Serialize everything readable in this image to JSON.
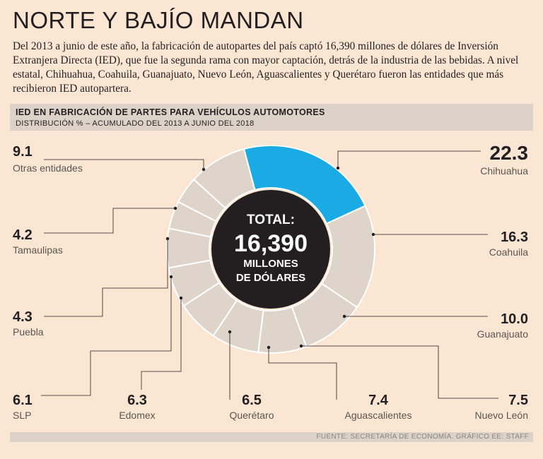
{
  "header": {
    "title": "NORTE Y BAJÍO MANDAN",
    "intro": "Del 2013 a junio de este año, la fabricación de autopartes del país captó 16,390 millones de dólares de Inversión Extranjera Directa (IED), que fue la segunda rama con mayor captación, detrás de la industria de las bebidas. A nivel estatal, Chihuahua, Coahuila, Guanajuato, Nuevo León, Aguascalientes y Querétaro fueron las entidades que más recibieron IED autopartera."
  },
  "chart_data": {
    "type": "pie",
    "title": "IED EN FABRICACIÓN DE PARTES PARA VEHÍCULOS AUTOMOTORES",
    "subtitle": "DISTRIBUCIÓN % – ACUMULADO DEL 2013 A JUNIO DEL 2018",
    "center": {
      "line1": "TOTAL:",
      "line2": "16,390",
      "line3": "MILLONES",
      "line4": "DE DÓLARES"
    },
    "slices": [
      {
        "label": "Chihuahua",
        "value": 22.3,
        "value_text": "22.3",
        "highlight": true
      },
      {
        "label": "Coahuila",
        "value": 16.3,
        "value_text": "16.3"
      },
      {
        "label": "Guanajuato",
        "value": 10.0,
        "value_text": "10.0"
      },
      {
        "label": "Nuevo León",
        "value": 7.5,
        "value_text": "7.5"
      },
      {
        "label": "Aguascalientes",
        "value": 7.4,
        "value_text": "7.4"
      },
      {
        "label": "Querétaro",
        "value": 6.5,
        "value_text": "6.5"
      },
      {
        "label": "Edomex",
        "value": 6.3,
        "value_text": "6.3"
      },
      {
        "label": "SLP",
        "value": 6.1,
        "value_text": "6.1"
      },
      {
        "label": "Puebla",
        "value": 4.3,
        "value_text": "4.3"
      },
      {
        "label": "Tamaulipas",
        "value": 4.2,
        "value_text": "4.2"
      },
      {
        "label": "Otras entidades",
        "value": 9.1,
        "value_text": "9.1"
      }
    ],
    "source": "FUENTE: SECRETARÍA DE ECONOMÍA. GRÁFICO EE: STAFF"
  },
  "colors": {
    "highlight": "#1aabe5",
    "slice": "#dfd4ca",
    "center": "#231f20",
    "background": "#fbe6d3"
  }
}
